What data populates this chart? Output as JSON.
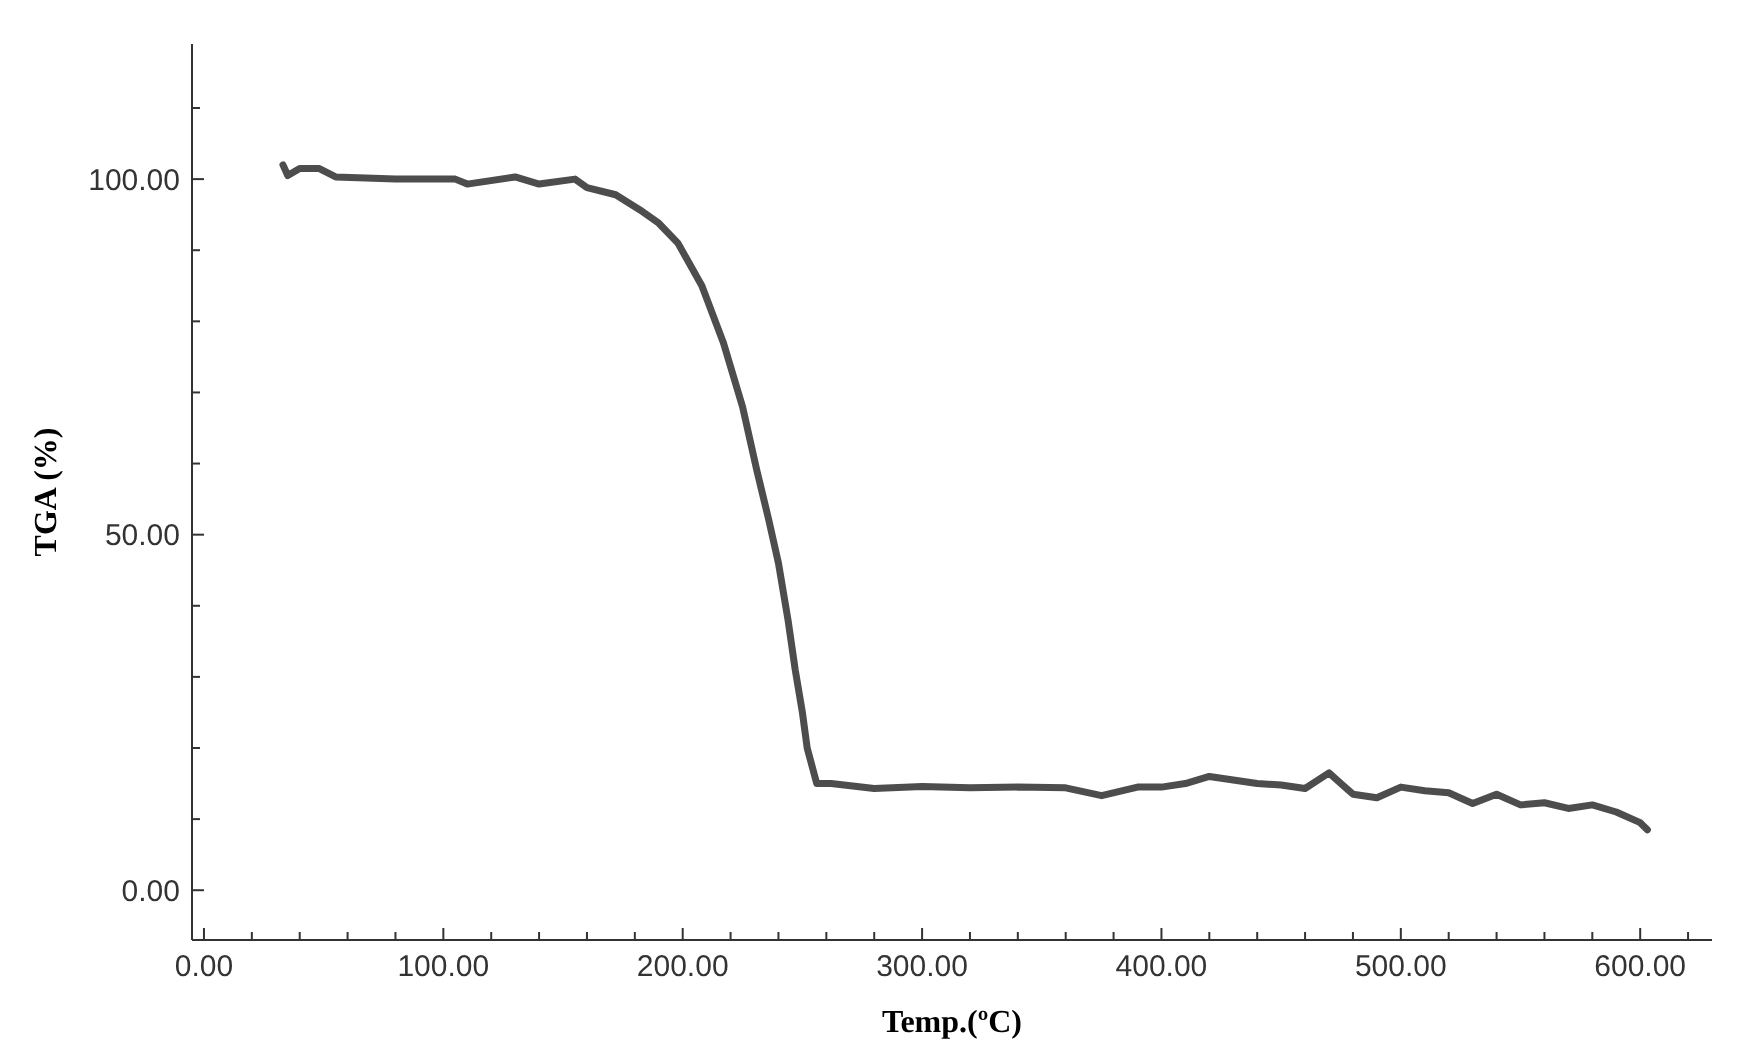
{
  "chart_data": {
    "type": "line",
    "xlabel": "Temp.(ºC)",
    "ylabel": "TGA (%)",
    "xlim": [
      -5,
      630
    ],
    "ylim": [
      -7,
      119
    ],
    "xticks": [
      {
        "value": 0,
        "label": "0.00"
      },
      {
        "value": 20,
        "label": null
      },
      {
        "value": 40,
        "label": null
      },
      {
        "value": 60,
        "label": null
      },
      {
        "value": 80,
        "label": null
      },
      {
        "value": 100,
        "label": "100.00"
      },
      {
        "value": 120,
        "label": null
      },
      {
        "value": 140,
        "label": null
      },
      {
        "value": 160,
        "label": null
      },
      {
        "value": 180,
        "label": null
      },
      {
        "value": 200,
        "label": "200.00"
      },
      {
        "value": 220,
        "label": null
      },
      {
        "value": 240,
        "label": null
      },
      {
        "value": 260,
        "label": null
      },
      {
        "value": 280,
        "label": null
      },
      {
        "value": 300,
        "label": "300.00"
      },
      {
        "value": 320,
        "label": null
      },
      {
        "value": 340,
        "label": null
      },
      {
        "value": 360,
        "label": null
      },
      {
        "value": 380,
        "label": null
      },
      {
        "value": 400,
        "label": "400.00"
      },
      {
        "value": 420,
        "label": null
      },
      {
        "value": 440,
        "label": null
      },
      {
        "value": 460,
        "label": null
      },
      {
        "value": 480,
        "label": null
      },
      {
        "value": 500,
        "label": "500.00"
      },
      {
        "value": 520,
        "label": null
      },
      {
        "value": 540,
        "label": null
      },
      {
        "value": 560,
        "label": null
      },
      {
        "value": 580,
        "label": null
      },
      {
        "value": 600,
        "label": "600.00"
      },
      {
        "value": 620,
        "label": null
      }
    ],
    "yticks": [
      {
        "value": 0,
        "label": "0.00"
      },
      {
        "value": 10,
        "label": null
      },
      {
        "value": 20,
        "label": null
      },
      {
        "value": 30,
        "label": null
      },
      {
        "value": 40,
        "label": null
      },
      {
        "value": 50,
        "label": "50.00"
      },
      {
        "value": 60,
        "label": null
      },
      {
        "value": 70,
        "label": null
      },
      {
        "value": 80,
        "label": null
      },
      {
        "value": 90,
        "label": null
      },
      {
        "value": 100,
        "label": "100.00"
      },
      {
        "value": 110,
        "label": null
      }
    ],
    "grid": false,
    "marker": "none",
    "line_style": "solid",
    "series": [
      {
        "color": "#4d4d4d",
        "x": [
          33,
          35,
          40,
          48,
          55,
          80,
          105,
          110,
          130,
          140,
          155,
          160,
          172,
          182,
          190,
          198,
          208,
          217,
          225,
          231,
          236,
          240,
          244,
          247,
          250,
          252,
          256,
          262,
          280,
          300,
          320,
          340,
          360,
          375,
          390,
          400,
          410,
          420,
          430,
          440,
          450,
          460,
          470,
          475,
          480,
          490,
          500,
          510,
          520,
          530,
          540,
          550,
          560,
          570,
          580,
          590,
          600,
          603
        ],
        "values": [
          102,
          100.5,
          101.5,
          101.5,
          100.3,
          100,
          100,
          99.3,
          100.3,
          99.3,
          100,
          98.8,
          97.8,
          95.7,
          93.8,
          91,
          85,
          77,
          68,
          59,
          52,
          46,
          38,
          31,
          25,
          20,
          15,
          15,
          14.3,
          14.6,
          14.4,
          14.5,
          14.4,
          13.3,
          14.5,
          14.5,
          15,
          16,
          15.5,
          15,
          14.8,
          14.3,
          16.5,
          15,
          13.5,
          13,
          14.5,
          14,
          13.7,
          12.2,
          13.5,
          12,
          12.3,
          11.5,
          12,
          11,
          9.5,
          8.5
        ]
      }
    ]
  }
}
